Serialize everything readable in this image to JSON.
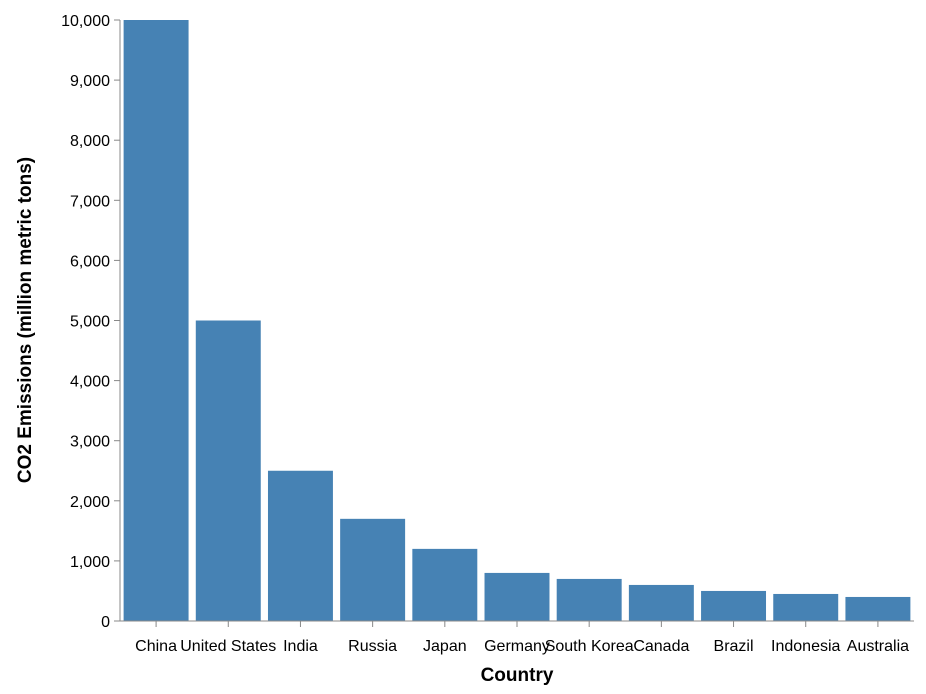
{
  "chart_data": {
    "type": "bar",
    "categories": [
      "China",
      "United States",
      "India",
      "Russia",
      "Japan",
      "Germany",
      "South Korea",
      "Canada",
      "Brazil",
      "Indonesia",
      "Australia"
    ],
    "values": [
      10000,
      5000,
      2500,
      1700,
      1200,
      800,
      700,
      600,
      500,
      450,
      400
    ],
    "xlabel": "Country",
    "ylabel": "CO2 Emissions (million metric tons)",
    "ylim": [
      0,
      10000
    ],
    "yticks": [
      0,
      1000,
      2000,
      3000,
      4000,
      5000,
      6000,
      7000,
      8000,
      9000,
      10000
    ],
    "ytick_labels": [
      "0",
      "1,000",
      "2,000",
      "3,000",
      "4,000",
      "5,000",
      "6,000",
      "7,000",
      "8,000",
      "9,000",
      "10,000"
    ],
    "bar_color": "#4682b4",
    "grid": false,
    "legend": "none"
  }
}
